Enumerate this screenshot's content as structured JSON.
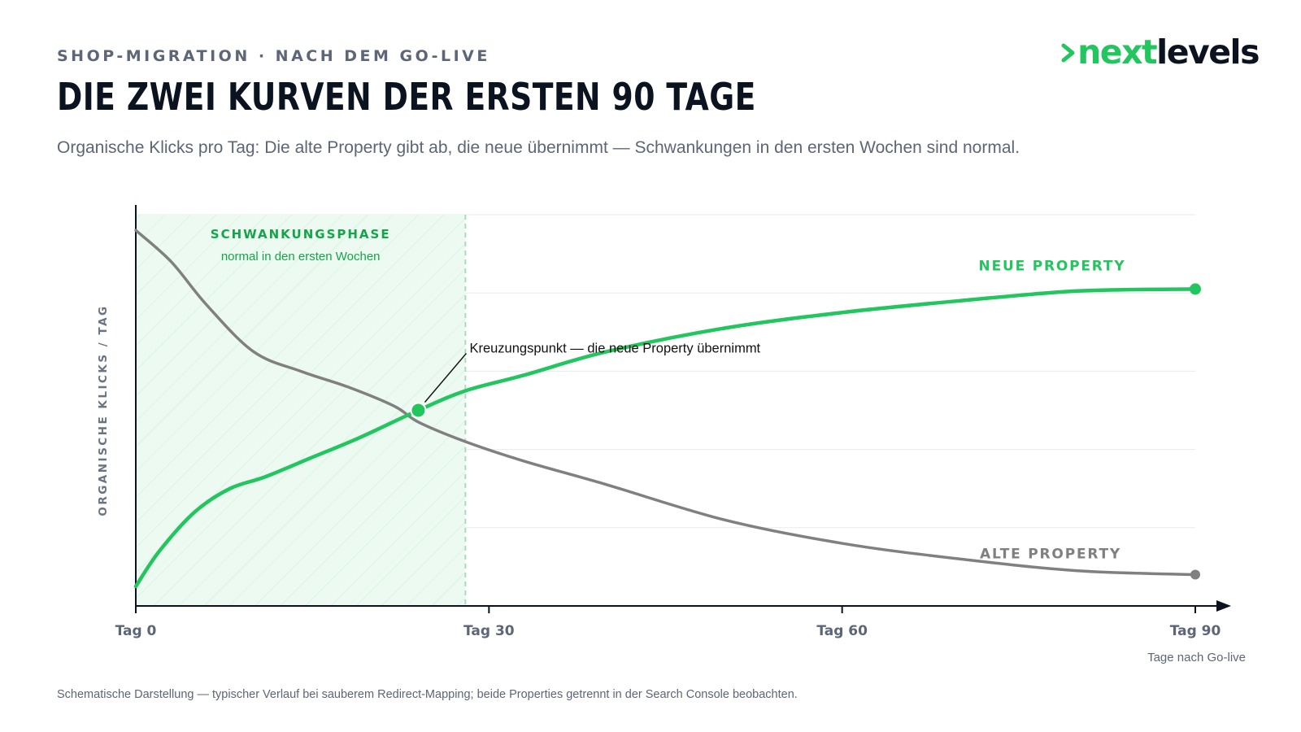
{
  "header": {
    "eyebrow": "SHOP-MIGRATION · NACH DEM GO-LIVE",
    "title": "DIE ZWEI KURVEN DER ERSTEN 90 TAGE",
    "subtitle": "Organische Klicks pro Tag: Die alte Property gibt ab, die neue übernimmt — Schwankungen in den ersten Wochen sind normal."
  },
  "logo": {
    "prefix": "next",
    "suffix": "levels",
    "icon": "chevron-right-icon"
  },
  "footnote": "Schematische Darstellung — typischer Verlauf bei sauberem Redirect-Mapping; beide Properties getrennt in der Search Console beobachten.",
  "colors": {
    "new": "#22c55e",
    "old": "#808080",
    "phase_fill": "#ecfaf1",
    "text_dark": "#0c1320",
    "text_muted": "#5d6676"
  },
  "chart_data": {
    "type": "line",
    "xlabel": "Tage nach Go-live",
    "ylabel": "ORGANISCHE KLICKS / TAG",
    "xlim": [
      0,
      90
    ],
    "ylim": [
      0,
      100
    ],
    "grid": true,
    "x_ticks": [
      0,
      30,
      60,
      90
    ],
    "x_tick_labels": [
      "Tag 0",
      "Tag 30",
      "Tag 60",
      "Tag 90"
    ],
    "series": [
      {
        "name": "NEUE PROPERTY",
        "color": "#22c55e",
        "x": [
          0,
          2,
          5,
          8,
          11,
          15,
          19,
          24,
          28,
          33,
          40,
          50,
          60,
          70,
          80,
          90
        ],
        "values": [
          5,
          14,
          24,
          30,
          33,
          38,
          43,
          50,
          55,
          59,
          65,
          71,
          75,
          78,
          80.5,
          81
        ]
      },
      {
        "name": "ALTE PROPERTY",
        "color": "#808080",
        "x": [
          0,
          3,
          6,
          10,
          14,
          18,
          22,
          24,
          28,
          33,
          40,
          50,
          60,
          70,
          80,
          90
        ],
        "values": [
          96,
          88,
          77,
          65,
          60,
          56,
          51,
          47,
          42,
          37,
          31,
          22,
          16,
          12,
          9,
          8
        ]
      }
    ],
    "phase": {
      "label": "SCHWANKUNGSPHASE",
      "sublabel": "normal in den ersten Wochen",
      "x_range": [
        0,
        28
      ]
    },
    "annotations": [
      {
        "text": "Kreuzungspunkt — die neue Property übernimmt",
        "x": 24,
        "y": 50
      }
    ]
  }
}
